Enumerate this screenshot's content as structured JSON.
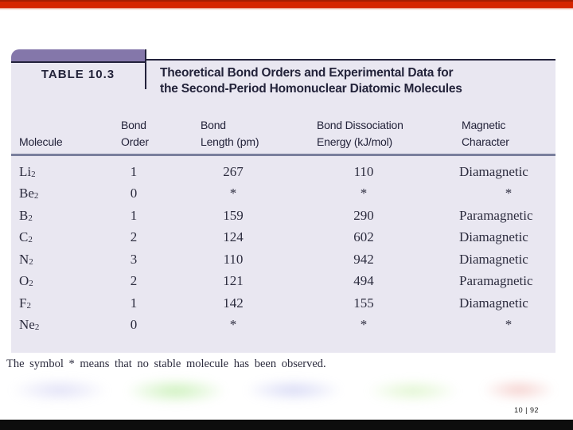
{
  "theme": {
    "top_bar_red": "#d52500",
    "top_bar_red_dark": "#a51e02",
    "tab_purple": "#8477aa",
    "table_background": "#e9e7f1",
    "dark_rule": "#23223c",
    "header_rule": "#7a7f9d",
    "text_ink": "#23233a",
    "serif_ink": "#2c2c3e",
    "bottom_bar_black": "#0d0d0d"
  },
  "slide": {
    "page_counter": "10 | 92"
  },
  "table": {
    "label": "TABLE 10.3",
    "title_line1": "Theoretical Bond Orders and Experimental Data for",
    "title_line2": "the Second-Period Homonuclear Diatomic Molecules",
    "headers": [
      [
        "",
        "Molecule"
      ],
      [
        "Bond",
        "Order"
      ],
      [
        "Bond",
        "Length (pm)"
      ],
      [
        "Bond Dissociation",
        "Energy (kJ/mol)"
      ],
      [
        "Magnetic",
        "Character"
      ]
    ],
    "rows": [
      {
        "molecule": "Li",
        "sub": "2",
        "bond_order": "1",
        "bond_length": "267",
        "bond_energy": "110",
        "magnetic": "Diamagnetic"
      },
      {
        "molecule": "Be",
        "sub": "2",
        "bond_order": "0",
        "bond_length": "*",
        "bond_energy": "*",
        "magnetic": "*"
      },
      {
        "molecule": "B",
        "sub": "2",
        "bond_order": "1",
        "bond_length": "159",
        "bond_energy": "290",
        "magnetic": "Paramagnetic"
      },
      {
        "molecule": "C",
        "sub": "2",
        "bond_order": "2",
        "bond_length": "124",
        "bond_energy": "602",
        "magnetic": "Diamagnetic"
      },
      {
        "molecule": "N",
        "sub": "2",
        "bond_order": "3",
        "bond_length": "110",
        "bond_energy": "942",
        "magnetic": "Diamagnetic"
      },
      {
        "molecule": "O",
        "sub": "2",
        "bond_order": "2",
        "bond_length": "121",
        "bond_energy": "494",
        "magnetic": "Paramagnetic"
      },
      {
        "molecule": "F",
        "sub": "2",
        "bond_order": "1",
        "bond_length": "142",
        "bond_energy": "155",
        "magnetic": "Diamagnetic"
      },
      {
        "molecule": "Ne",
        "sub": "2",
        "bond_order": "0",
        "bond_length": "*",
        "bond_energy": "*",
        "magnetic": "*"
      }
    ],
    "footnote": "The symbol * means that no stable molecule has been observed."
  },
  "decor": {
    "blob_colors": [
      "#c6c6ef",
      "#9fe47f",
      "#b4b8ec",
      "#c4eda4",
      "#eba49e"
    ]
  }
}
